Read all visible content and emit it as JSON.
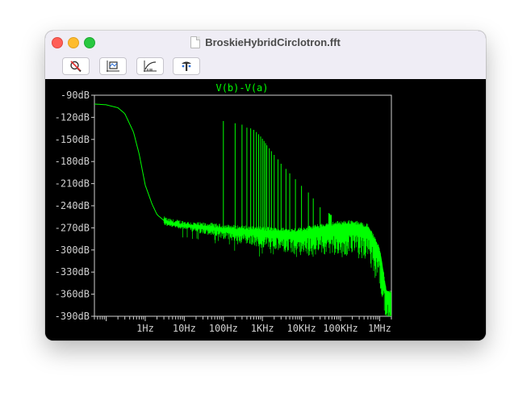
{
  "window": {
    "title": "BroskieHybridCirclotron.fft"
  },
  "toolbar": {
    "buttons": [
      "zoom-cancel-icon",
      "autorange-icon",
      "log-axis-icon",
      "pan-icon"
    ]
  },
  "colors": {
    "trace": "#00ff00",
    "axes": "#d0d0d0",
    "background": "#000000"
  },
  "chart_data": {
    "type": "line",
    "title": "V(b)-V(a)",
    "xlabel": "",
    "ylabel": "",
    "x_scale": "log",
    "xlim": [
      0.05,
      2000000
    ],
    "ylim": [
      -390,
      -90
    ],
    "grid": false,
    "y_ticks": [
      "-90dB",
      "-120dB",
      "-150dB",
      "-180dB",
      "-210dB",
      "-240dB",
      "-270dB",
      "-300dB",
      "-330dB",
      "-360dB",
      "-390dB"
    ],
    "y_tick_values": [
      -90,
      -120,
      -150,
      -180,
      -210,
      -240,
      -270,
      -300,
      -330,
      -360,
      -390
    ],
    "x_ticks": [
      "1Hz",
      "10Hz",
      "100Hz",
      "1KHz",
      "10KHz",
      "100KHz",
      "1MHz"
    ],
    "x_tick_values": [
      1,
      10,
      100,
      1000,
      10000,
      100000,
      1000000
    ],
    "series": [
      {
        "x": [
          0.05,
          0.1,
          0.2,
          0.3,
          0.5,
          0.7,
          1,
          1.5,
          2,
          3,
          4,
          5,
          10,
          20,
          50,
          100,
          200,
          500,
          1000,
          2000,
          5000,
          10000,
          20000,
          50000,
          100000,
          200000,
          500000,
          1000000,
          1500000
        ],
        "y": [
          -102,
          -103,
          -107,
          -115,
          -140,
          -170,
          -212,
          -238,
          -252,
          -260,
          -263,
          -264,
          -266,
          -268,
          -269,
          -271,
          -272,
          -273,
          -274,
          -275,
          -276,
          -275,
          -272,
          -268,
          -266,
          -265,
          -270,
          -300,
          -360
        ]
      },
      {
        "x": [
          100,
          200,
          300,
          400,
          500,
          600,
          700,
          800,
          900,
          1000,
          1100,
          1200,
          1300,
          1500,
          1700,
          2000,
          2500,
          3000,
          4000,
          5000,
          7000,
          10000,
          15000,
          20000,
          30000,
          50000
        ],
        "y": [
          -125,
          -128,
          -130,
          -134,
          -135,
          -137,
          -140,
          -143,
          -146,
          -149,
          -152,
          -155,
          -158,
          -162,
          -166,
          -171,
          -177,
          -183,
          -190,
          -196,
          -204,
          -213,
          -222,
          -230,
          -242,
          -250
        ]
      }
    ]
  }
}
